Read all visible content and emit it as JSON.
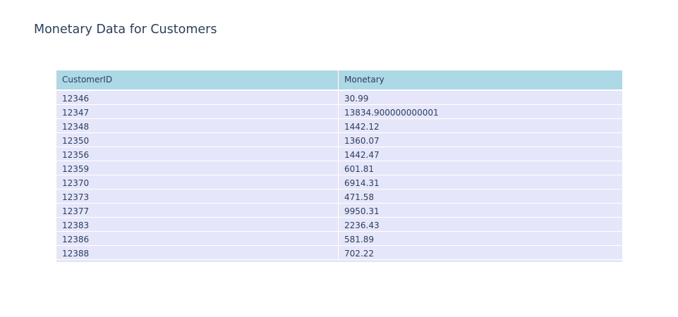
{
  "title": "Monetary Data for Customers",
  "colors": {
    "header_fill": "#add8e6",
    "cell_fill": "#e6e6fa",
    "text": "#2a3f5f"
  },
  "chart_data": {
    "type": "table",
    "title": "Monetary Data for Customers",
    "columns": [
      "CustomerID",
      "Monetary"
    ],
    "rows": [
      [
        "12346",
        "30.99"
      ],
      [
        "12347",
        "13834.900000000001"
      ],
      [
        "12348",
        "1442.12"
      ],
      [
        "12350",
        "1360.07"
      ],
      [
        "12356",
        "1442.47"
      ],
      [
        "12359",
        "601.81"
      ],
      [
        "12370",
        "6914.31"
      ],
      [
        "12373",
        "471.58"
      ],
      [
        "12377",
        "9950.31"
      ],
      [
        "12383",
        "2236.43"
      ],
      [
        "12386",
        "581.89"
      ],
      [
        "12388",
        "702.22"
      ]
    ]
  }
}
